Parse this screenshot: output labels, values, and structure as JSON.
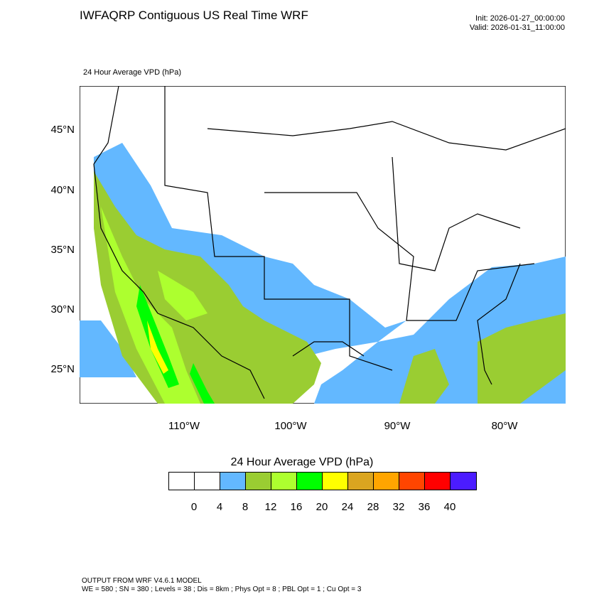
{
  "title": "IWFAQRP Contiguous US Real Time WRF",
  "init": "Init: 2026-01-27_00:00:00",
  "valid": "Valid: 2026-01-31_11:00:00",
  "subtitle": "24 Hour Average VPD   (hPa)",
  "lat_labels": [
    "45°N",
    "40°N",
    "35°N",
    "30°N",
    "25°N"
  ],
  "lon_labels": [
    "110°W",
    "100°W",
    "90°W",
    "80°W"
  ],
  "legend": {
    "title": "24 Hour Average VPD  (hPa)",
    "colors": [
      "#ffffff",
      "#ffffff",
      "#63b8ff",
      "#9acd32",
      "#adff2f",
      "#00ff00",
      "#ffff00",
      "#daa520",
      "#ffa500",
      "#ff4500",
      "#ff0000",
      "#4b1cff"
    ],
    "levels": [
      "0",
      "4",
      "8",
      "12",
      "16",
      "20",
      "24",
      "28",
      "32",
      "36",
      "40"
    ]
  },
  "footer": {
    "line1": "OUTPUT FROM WRF V4.6.1 MODEL",
    "line2": "WE = 580 ; SN = 380 ; Levels = 38 ; Dis = 8km ; Phys Opt = 8 ; PBL Opt = 1 ; Cu Opt = 3"
  }
}
